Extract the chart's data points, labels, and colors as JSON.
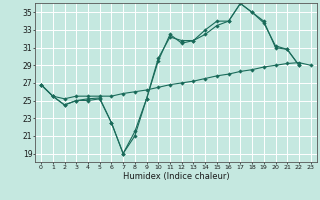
{
  "title": "",
  "xlabel": "Humidex (Indice chaleur)",
  "ylabel": "",
  "bg_color": "#c5e8e0",
  "grid_color": "#ffffff",
  "line_color": "#1a6b5a",
  "xlim": [
    -0.5,
    23.5
  ],
  "ylim": [
    18,
    36
  ],
  "yticks": [
    19,
    21,
    23,
    25,
    27,
    29,
    31,
    33,
    35
  ],
  "xticks": [
    0,
    1,
    2,
    3,
    4,
    5,
    6,
    7,
    8,
    9,
    10,
    11,
    12,
    13,
    14,
    15,
    16,
    17,
    18,
    19,
    20,
    21,
    22,
    23
  ],
  "line1_x": [
    0,
    1,
    2,
    3,
    4,
    5,
    6,
    7,
    8,
    9,
    10,
    11,
    12,
    13,
    14,
    15,
    16,
    17,
    18,
    19,
    20,
    21,
    22
  ],
  "line1_y": [
    26.8,
    25.5,
    24.5,
    25.0,
    25.0,
    25.2,
    22.5,
    19.0,
    21.0,
    25.2,
    29.5,
    32.5,
    31.5,
    31.8,
    32.5,
    33.5,
    34.0,
    36.0,
    35.0,
    33.8,
    31.2,
    30.8,
    29.0
  ],
  "line2_x": [
    0,
    1,
    2,
    3,
    4,
    5,
    6,
    7,
    8,
    9,
    10,
    11,
    12,
    13,
    14,
    15,
    16,
    17,
    18,
    19,
    20,
    21,
    22
  ],
  "line2_y": [
    26.8,
    25.5,
    24.5,
    25.0,
    25.2,
    25.3,
    22.5,
    19.0,
    21.5,
    25.2,
    29.8,
    32.2,
    31.8,
    31.8,
    33.0,
    34.0,
    34.0,
    36.0,
    35.0,
    34.0,
    31.0,
    30.8,
    29.0
  ],
  "line3_x": [
    0,
    1,
    2,
    3,
    4,
    5,
    6,
    7,
    8,
    9,
    10,
    11,
    12,
    13,
    14,
    15,
    16,
    17,
    18,
    19,
    20,
    21,
    22,
    23
  ],
  "line3_y": [
    26.8,
    25.5,
    25.2,
    25.5,
    25.5,
    25.5,
    25.5,
    25.8,
    26.0,
    26.2,
    26.5,
    26.8,
    27.0,
    27.2,
    27.5,
    27.8,
    28.0,
    28.3,
    28.5,
    28.8,
    29.0,
    29.2,
    29.3,
    29.0
  ]
}
